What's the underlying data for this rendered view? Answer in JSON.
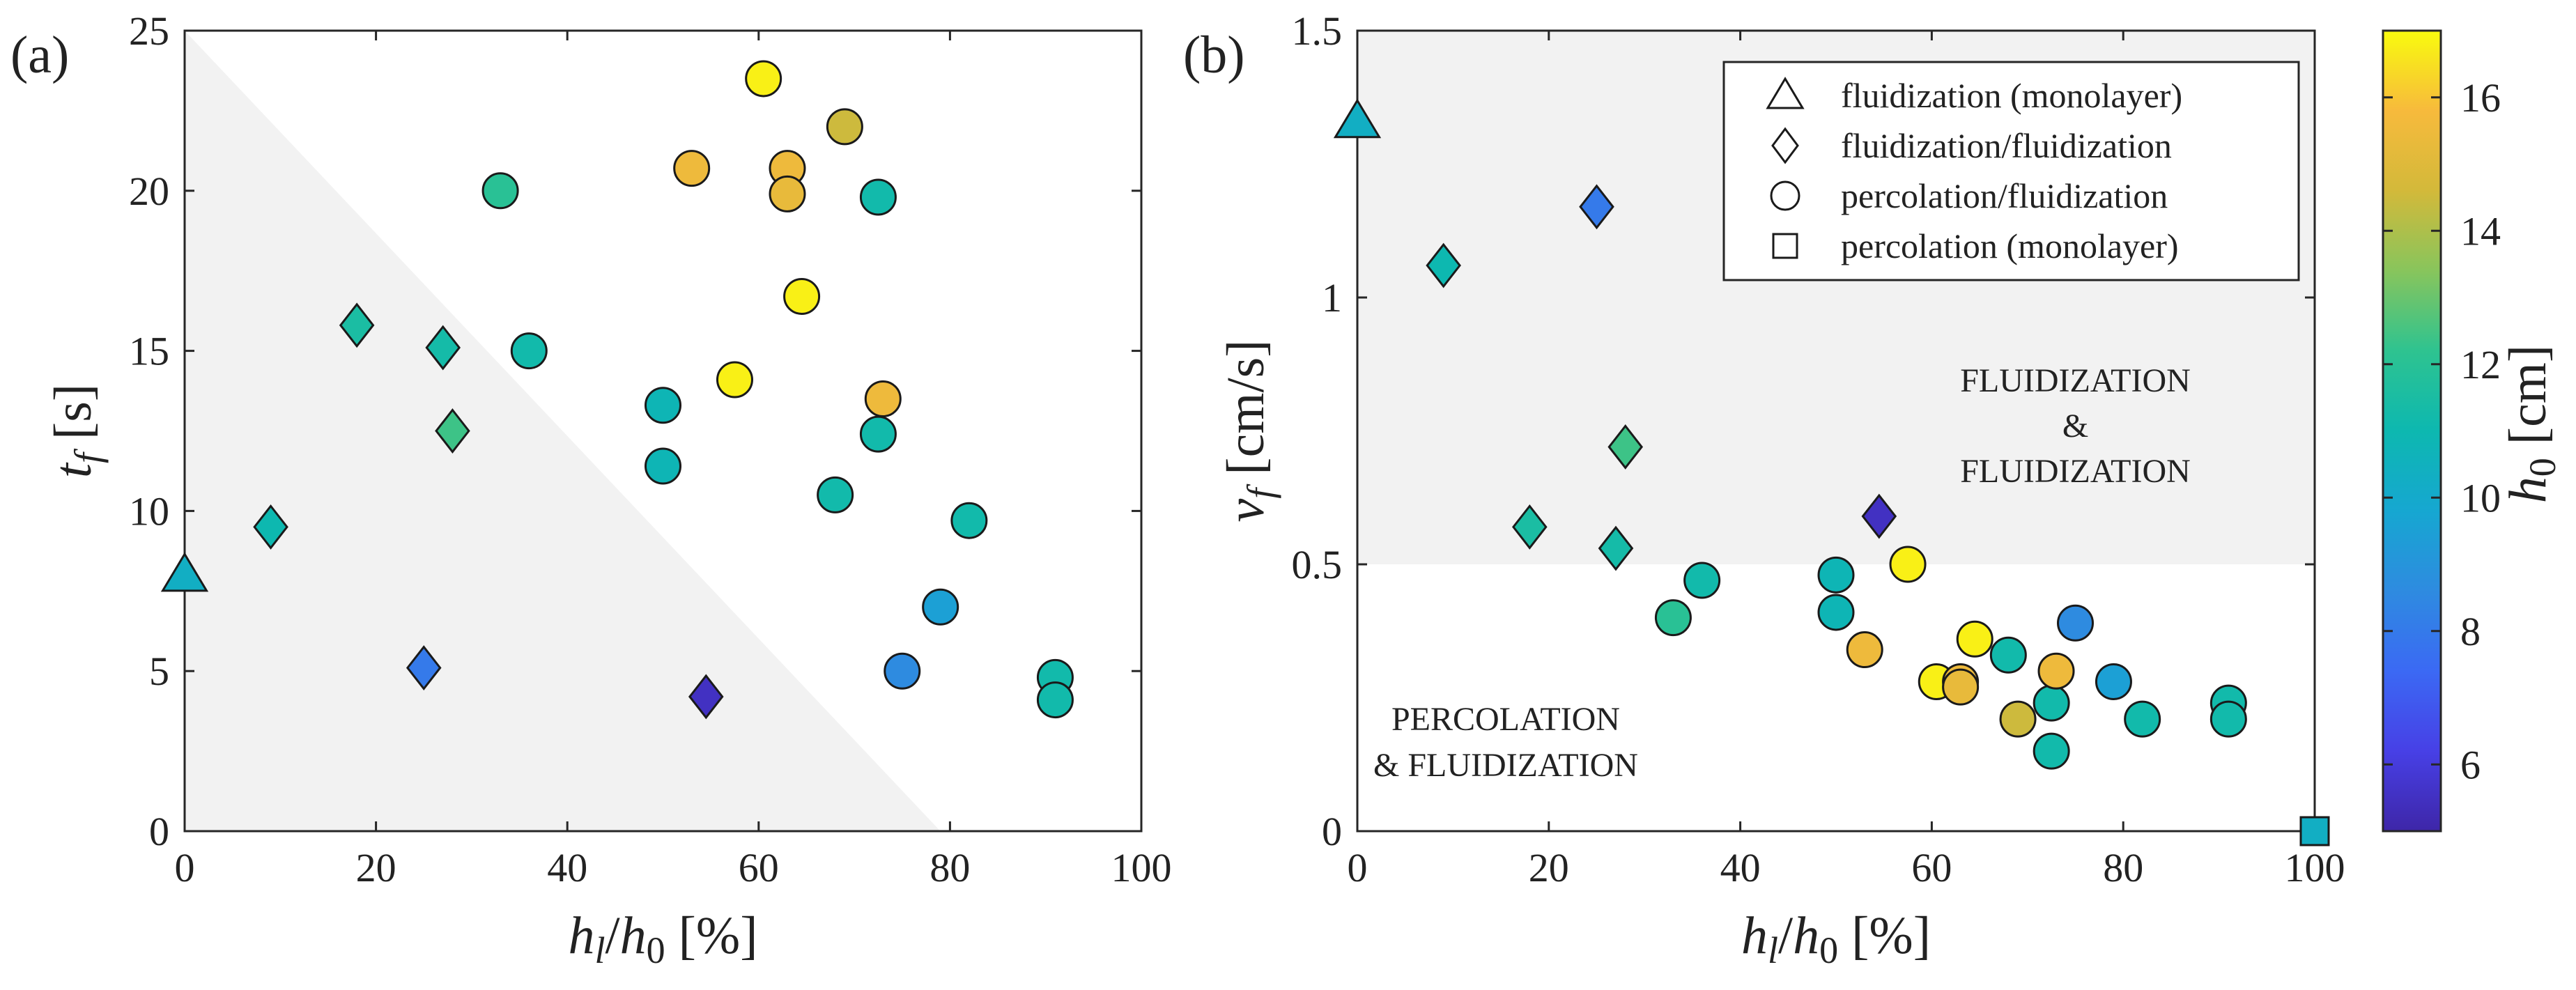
{
  "chart_data": [
    {
      "type": "scatter",
      "panel": "(a)",
      "xlabel": "h_l/h_0 [%]",
      "ylabel": "t_f [s]",
      "xlim": [
        0,
        100
      ],
      "ylim": [
        0,
        25
      ],
      "xticks": [
        "0",
        "20",
        "40",
        "60",
        "80",
        "100"
      ],
      "yticks": [
        "0",
        "5",
        "10",
        "15",
        "20",
        "25"
      ],
      "grid": false,
      "shaded_region": "triangle from (0,25) to (0,0) to (79,0)",
      "series": [
        {
          "name": "fluidization (monolayer)",
          "marker": "triangle",
          "points": [
            {
              "x": 0,
              "y": 8.0,
              "c": 10.3
            }
          ]
        },
        {
          "name": "fluidization/fluidization",
          "marker": "diamond",
          "points": [
            {
              "x": 9,
              "y": 9.5,
              "c": 11
            },
            {
              "x": 18,
              "y": 15.8,
              "c": 11.5
            },
            {
              "x": 27,
              "y": 15.1,
              "c": 11.3
            },
            {
              "x": 28,
              "y": 12.5,
              "c": 12.4
            },
            {
              "x": 25,
              "y": 5.1,
              "c": 8
            },
            {
              "x": 54.5,
              "y": 4.2,
              "c": 5.5
            }
          ]
        },
        {
          "name": "percolation/fluidization",
          "marker": "circle",
          "points": [
            {
              "x": 33,
              "y": 20.0,
              "c": 12
            },
            {
              "x": 36,
              "y": 15.0,
              "c": 11.2
            },
            {
              "x": 50,
              "y": 13.3,
              "c": 10.8
            },
            {
              "x": 50,
              "y": 11.4,
              "c": 10.8
            },
            {
              "x": 53,
              "y": 20.7,
              "c": 15.5
            },
            {
              "x": 57.5,
              "y": 14.1,
              "c": 16.8
            },
            {
              "x": 60.5,
              "y": 23.5,
              "c": 16.8
            },
            {
              "x": 63,
              "y": 20.7,
              "c": 15.5
            },
            {
              "x": 63,
              "y": 19.9,
              "c": 15.3
            },
            {
              "x": 64.5,
              "y": 16.7,
              "c": 16.8
            },
            {
              "x": 68,
              "y": 10.5,
              "c": 11.2
            },
            {
              "x": 69,
              "y": 22.0,
              "c": 14.5
            },
            {
              "x": 72.5,
              "y": 19.8,
              "c": 11.2
            },
            {
              "x": 72.5,
              "y": 12.4,
              "c": 11.2
            },
            {
              "x": 73,
              "y": 13.5,
              "c": 15.5
            },
            {
              "x": 75,
              "y": 5.0,
              "c": 8.6
            },
            {
              "x": 79,
              "y": 7.0,
              "c": 9.5
            },
            {
              "x": 82,
              "y": 9.7,
              "c": 11.2
            },
            {
              "x": 91,
              "y": 4.8,
              "c": 11.2
            },
            {
              "x": 91,
              "y": 4.1,
              "c": 11.2
            }
          ]
        }
      ]
    },
    {
      "type": "scatter",
      "panel": "(b)",
      "xlabel": "h_l/h_0 [%]",
      "ylabel": "v_f [cm/s]",
      "xlim": [
        0,
        100
      ],
      "ylim": [
        0,
        1.5
      ],
      "xticks": [
        "0",
        "20",
        "40",
        "60",
        "80",
        "100"
      ],
      "yticks": [
        "0",
        "0.5",
        "1",
        "1.5"
      ],
      "grid": false,
      "shaded_region": "v_f >= 0.5",
      "region_labels": {
        "upper_line1": "FLUIDIZATION",
        "upper_line2": "&",
        "upper_line3": "FLUIDIZATION",
        "lower_line1": "PERCOLATION",
        "lower_line2": "& FLUIDIZATION"
      },
      "legend": {
        "placement": "top-right",
        "entries": [
          "fluidization (monolayer)",
          "fluidization/fluidization",
          "percolation/fluidization",
          "percolation (monolayer)"
        ]
      },
      "series": [
        {
          "name": "fluidization (monolayer)",
          "marker": "triangle",
          "points": [
            {
              "x": 0,
              "y": 1.33,
              "c": 10.3
            }
          ]
        },
        {
          "name": "fluidization/fluidization",
          "marker": "diamond",
          "points": [
            {
              "x": 9,
              "y": 1.06,
              "c": 11
            },
            {
              "x": 18,
              "y": 0.57,
              "c": 11.5
            },
            {
              "x": 25,
              "y": 1.17,
              "c": 8
            },
            {
              "x": 27,
              "y": 0.53,
              "c": 11.3
            },
            {
              "x": 28,
              "y": 0.72,
              "c": 12.4
            },
            {
              "x": 54.5,
              "y": 0.59,
              "c": 5.5
            }
          ]
        },
        {
          "name": "percolation/fluidization",
          "marker": "circle",
          "points": [
            {
              "x": 33,
              "y": 0.4,
              "c": 12
            },
            {
              "x": 36,
              "y": 0.47,
              "c": 11.2
            },
            {
              "x": 50,
              "y": 0.48,
              "c": 10.8
            },
            {
              "x": 50,
              "y": 0.41,
              "c": 10.8
            },
            {
              "x": 53,
              "y": 0.34,
              "c": 15.5
            },
            {
              "x": 57.5,
              "y": 0.5,
              "c": 16.8
            },
            {
              "x": 60.5,
              "y": 0.28,
              "c": 16.8
            },
            {
              "x": 63,
              "y": 0.28,
              "c": 15.5
            },
            {
              "x": 63,
              "y": 0.27,
              "c": 15.3
            },
            {
              "x": 64.5,
              "y": 0.36,
              "c": 16.8
            },
            {
              "x": 68,
              "y": 0.33,
              "c": 11.2
            },
            {
              "x": 69,
              "y": 0.21,
              "c": 14.5
            },
            {
              "x": 72.5,
              "y": 0.24,
              "c": 11.2
            },
            {
              "x": 72.5,
              "y": 0.15,
              "c": 11.2
            },
            {
              "x": 73,
              "y": 0.3,
              "c": 15.5
            },
            {
              "x": 75,
              "y": 0.39,
              "c": 8.6
            },
            {
              "x": 79,
              "y": 0.28,
              "c": 9.5
            },
            {
              "x": 82,
              "y": 0.21,
              "c": 11.2
            },
            {
              "x": 91,
              "y": 0.24,
              "c": 11.2
            },
            {
              "x": 91,
              "y": 0.21,
              "c": 11.2
            }
          ]
        },
        {
          "name": "percolation (monolayer)",
          "marker": "square",
          "points": [
            {
              "x": 100,
              "y": 0.0,
              "c": 10.3
            }
          ]
        }
      ]
    }
  ],
  "colorbar": {
    "label": "h_0 [cm]",
    "range": [
      5,
      17
    ],
    "ticks": [
      "6",
      "8",
      "10",
      "12",
      "14",
      "16"
    ],
    "colormap": "parula"
  }
}
